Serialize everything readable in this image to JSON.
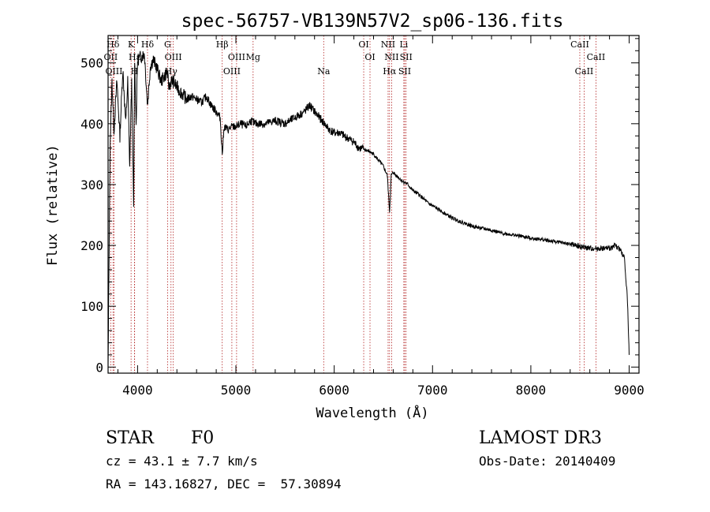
{
  "chart_data": {
    "type": "line",
    "title": "spec-56757-VB139N57V2_sp06-136.fits",
    "xlabel": "Wavelength (Å)",
    "ylabel": "Flux (relative)",
    "xlim": [
      3700,
      9100
    ],
    "ylim": [
      -10,
      545
    ],
    "x_ticks": [
      4000,
      5000,
      6000,
      7000,
      8000,
      9000
    ],
    "x_tick_labels": [
      "4000",
      "5000",
      "6000",
      "7000",
      "8000",
      "9000"
    ],
    "y_ticks": [
      0,
      100,
      200,
      300,
      400,
      500
    ],
    "y_tick_labels": [
      "0",
      "100",
      "200",
      "300",
      "400",
      "500"
    ],
    "grid": false,
    "series": [
      {
        "name": "flux",
        "x": [
          3700,
          3720,
          3740,
          3760,
          3790,
          3820,
          3850,
          3880,
          3900,
          3920,
          3940,
          3960,
          3970,
          3985,
          4000,
          4030,
          4070,
          4101,
          4130,
          4160,
          4200,
          4240,
          4280,
          4300,
          4320,
          4340,
          4360,
          4400,
          4450,
          4500,
          4550,
          4600,
          4650,
          4700,
          4750,
          4800,
          4840,
          4861,
          4880,
          4920,
          4960,
          5000,
          5050,
          5100,
          5150,
          5200,
          5300,
          5400,
          5500,
          5600,
          5700,
          5750,
          5800,
          5850,
          5900,
          5950,
          6000,
          6050,
          6100,
          6150,
          6200,
          6250,
          6300,
          6350,
          6400,
          6450,
          6500,
          6540,
          6563,
          6580,
          6600,
          6650,
          6700,
          6750,
          6800,
          6850,
          6900,
          6950,
          7000,
          7100,
          7200,
          7300,
          7400,
          7500,
          7600,
          7700,
          7800,
          7900,
          8000,
          8100,
          8200,
          8300,
          8400,
          8500,
          8600,
          8700,
          8800,
          8850,
          8900,
          8950,
          8980,
          9000
        ],
        "y": [
          0,
          360,
          470,
          390,
          470,
          380,
          490,
          400,
          470,
          330,
          470,
          260,
          510,
          400,
          505,
          510,
          515,
          430,
          495,
          505,
          490,
          470,
          480,
          485,
          460,
          470,
          470,
          460,
          450,
          440,
          445,
          440,
          435,
          445,
          430,
          420,
          410,
          350,
          395,
          390,
          395,
          395,
          400,
          395,
          405,
          400,
          400,
          405,
          400,
          410,
          420,
          430,
          420,
          410,
          400,
          390,
          385,
          385,
          380,
          375,
          370,
          360,
          358,
          355,
          350,
          340,
          330,
          315,
          255,
          315,
          320,
          312,
          305,
          300,
          290,
          285,
          278,
          270,
          265,
          255,
          245,
          238,
          232,
          228,
          225,
          220,
          218,
          215,
          212,
          210,
          207,
          205,
          202,
          198,
          195,
          195,
          195,
          200,
          195,
          180,
          120,
          20
        ]
      }
    ],
    "line_ids": [
      {
        "label": "Hδ",
        "x": 3750
      },
      {
        "label": "OII",
        "x": 3727
      },
      {
        "label": "OIII",
        "x": 3760
      },
      {
        "label": "K",
        "x": 3934
      },
      {
        "label": "Hε",
        "x": 3970
      },
      {
        "label": "H",
        "x": 3968
      },
      {
        "label": "Hδ",
        "x": 4101
      },
      {
        "label": "OIII",
        "x": 4363
      },
      {
        "label": "Hγ",
        "x": 4340
      },
      {
        "label": "G",
        "x": 4305
      },
      {
        "label": "OIII",
        "x": 5007
      },
      {
        "label": "OIII",
        "x": 4959
      },
      {
        "label": "Hβ",
        "x": 4861
      },
      {
        "label": "Mg",
        "x": 5175
      },
      {
        "label": "Na",
        "x": 5893
      },
      {
        "label": "OI",
        "x": 6300
      },
      {
        "label": "OI",
        "x": 6364
      },
      {
        "label": "Hα",
        "x": 6563
      },
      {
        "label": "NII",
        "x": 6548
      },
      {
        "label": "NII",
        "x": 6584
      },
      {
        "label": "SII",
        "x": 6717
      },
      {
        "label": "Li",
        "x": 6708
      },
      {
        "label": "SII",
        "x": 6731
      },
      {
        "label": "CaII",
        "x": 8542
      },
      {
        "label": "CaII",
        "x": 8498
      },
      {
        "label": "CaII",
        "x": 8662
      }
    ]
  },
  "info": {
    "object_class": "STAR",
    "subclass": "F0",
    "survey": "LAMOST DR3",
    "redshift_line": "cz = 43.1 ± 7.7 km/s",
    "obs_date_line": "Obs-Date: 20140409",
    "coords_line": "RA = 143.16827, DEC =  57.30894"
  },
  "colors": {
    "axis": "#000000",
    "spectrum": "#000000",
    "line_marker": "#b22222"
  }
}
